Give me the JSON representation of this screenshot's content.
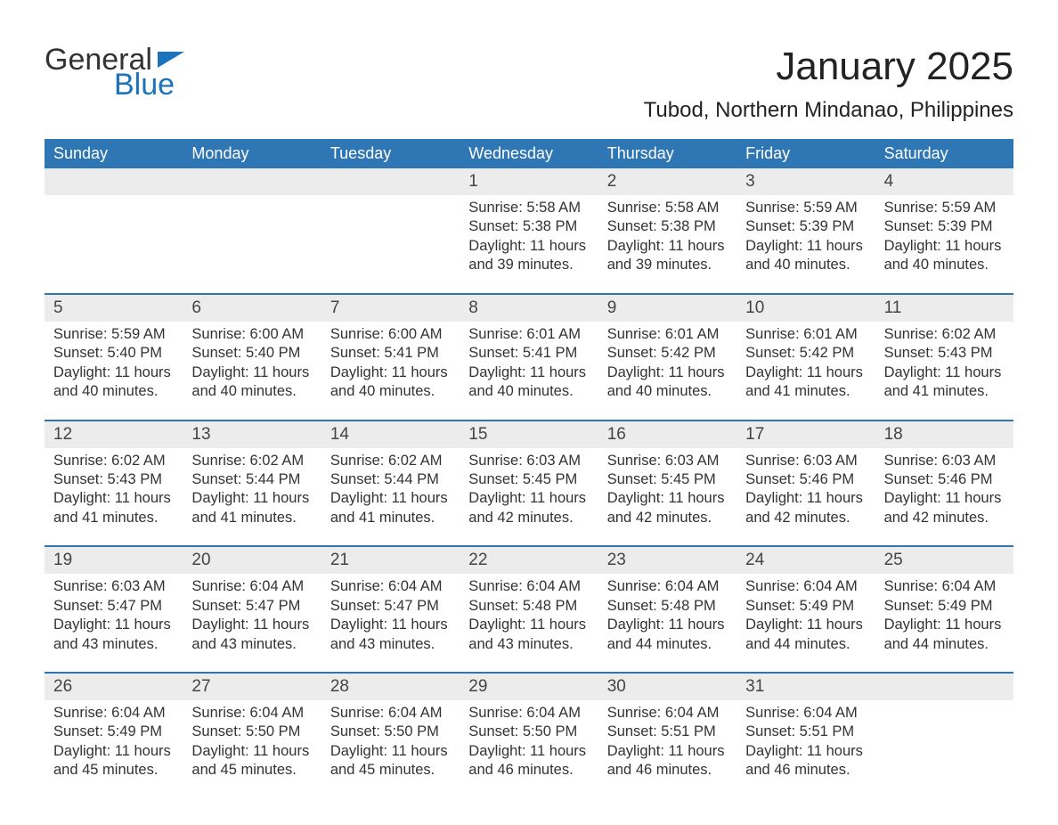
{
  "logo": {
    "text1": "General",
    "text2": "Blue"
  },
  "title": "January 2025",
  "subtitle": "Tubod, Northern Mindanao, Philippines",
  "colors": {
    "header_bg": "#2f76b5",
    "header_text": "#ffffff",
    "daynum_bg": "#ececec",
    "border": "#2f76b5",
    "text": "#333333",
    "logo_blue": "#1b74bb",
    "background": "#ffffff"
  },
  "typography": {
    "title_fontsize": 44,
    "subtitle_fontsize": 24,
    "dayheader_fontsize": 18,
    "daynum_fontsize": 19,
    "body_fontsize": 16.5,
    "font_family": "Arial"
  },
  "layout": {
    "columns": 7,
    "weeks": 5,
    "first_day_column_index": 3
  },
  "day_headers": [
    "Sunday",
    "Monday",
    "Tuesday",
    "Wednesday",
    "Thursday",
    "Friday",
    "Saturday"
  ],
  "days": [
    {
      "n": "1",
      "sunrise": "Sunrise: 5:58 AM",
      "sunset": "Sunset: 5:38 PM",
      "d1": "Daylight: 11 hours",
      "d2": "and 39 minutes."
    },
    {
      "n": "2",
      "sunrise": "Sunrise: 5:58 AM",
      "sunset": "Sunset: 5:38 PM",
      "d1": "Daylight: 11 hours",
      "d2": "and 39 minutes."
    },
    {
      "n": "3",
      "sunrise": "Sunrise: 5:59 AM",
      "sunset": "Sunset: 5:39 PM",
      "d1": "Daylight: 11 hours",
      "d2": "and 40 minutes."
    },
    {
      "n": "4",
      "sunrise": "Sunrise: 5:59 AM",
      "sunset": "Sunset: 5:39 PM",
      "d1": "Daylight: 11 hours",
      "d2": "and 40 minutes."
    },
    {
      "n": "5",
      "sunrise": "Sunrise: 5:59 AM",
      "sunset": "Sunset: 5:40 PM",
      "d1": "Daylight: 11 hours",
      "d2": "and 40 minutes."
    },
    {
      "n": "6",
      "sunrise": "Sunrise: 6:00 AM",
      "sunset": "Sunset: 5:40 PM",
      "d1": "Daylight: 11 hours",
      "d2": "and 40 minutes."
    },
    {
      "n": "7",
      "sunrise": "Sunrise: 6:00 AM",
      "sunset": "Sunset: 5:41 PM",
      "d1": "Daylight: 11 hours",
      "d2": "and 40 minutes."
    },
    {
      "n": "8",
      "sunrise": "Sunrise: 6:01 AM",
      "sunset": "Sunset: 5:41 PM",
      "d1": "Daylight: 11 hours",
      "d2": "and 40 minutes."
    },
    {
      "n": "9",
      "sunrise": "Sunrise: 6:01 AM",
      "sunset": "Sunset: 5:42 PM",
      "d1": "Daylight: 11 hours",
      "d2": "and 40 minutes."
    },
    {
      "n": "10",
      "sunrise": "Sunrise: 6:01 AM",
      "sunset": "Sunset: 5:42 PM",
      "d1": "Daylight: 11 hours",
      "d2": "and 41 minutes."
    },
    {
      "n": "11",
      "sunrise": "Sunrise: 6:02 AM",
      "sunset": "Sunset: 5:43 PM",
      "d1": "Daylight: 11 hours",
      "d2": "and 41 minutes."
    },
    {
      "n": "12",
      "sunrise": "Sunrise: 6:02 AM",
      "sunset": "Sunset: 5:43 PM",
      "d1": "Daylight: 11 hours",
      "d2": "and 41 minutes."
    },
    {
      "n": "13",
      "sunrise": "Sunrise: 6:02 AM",
      "sunset": "Sunset: 5:44 PM",
      "d1": "Daylight: 11 hours",
      "d2": "and 41 minutes."
    },
    {
      "n": "14",
      "sunrise": "Sunrise: 6:02 AM",
      "sunset": "Sunset: 5:44 PM",
      "d1": "Daylight: 11 hours",
      "d2": "and 41 minutes."
    },
    {
      "n": "15",
      "sunrise": "Sunrise: 6:03 AM",
      "sunset": "Sunset: 5:45 PM",
      "d1": "Daylight: 11 hours",
      "d2": "and 42 minutes."
    },
    {
      "n": "16",
      "sunrise": "Sunrise: 6:03 AM",
      "sunset": "Sunset: 5:45 PM",
      "d1": "Daylight: 11 hours",
      "d2": "and 42 minutes."
    },
    {
      "n": "17",
      "sunrise": "Sunrise: 6:03 AM",
      "sunset": "Sunset: 5:46 PM",
      "d1": "Daylight: 11 hours",
      "d2": "and 42 minutes."
    },
    {
      "n": "18",
      "sunrise": "Sunrise: 6:03 AM",
      "sunset": "Sunset: 5:46 PM",
      "d1": "Daylight: 11 hours",
      "d2": "and 42 minutes."
    },
    {
      "n": "19",
      "sunrise": "Sunrise: 6:03 AM",
      "sunset": "Sunset: 5:47 PM",
      "d1": "Daylight: 11 hours",
      "d2": "and 43 minutes."
    },
    {
      "n": "20",
      "sunrise": "Sunrise: 6:04 AM",
      "sunset": "Sunset: 5:47 PM",
      "d1": "Daylight: 11 hours",
      "d2": "and 43 minutes."
    },
    {
      "n": "21",
      "sunrise": "Sunrise: 6:04 AM",
      "sunset": "Sunset: 5:47 PM",
      "d1": "Daylight: 11 hours",
      "d2": "and 43 minutes."
    },
    {
      "n": "22",
      "sunrise": "Sunrise: 6:04 AM",
      "sunset": "Sunset: 5:48 PM",
      "d1": "Daylight: 11 hours",
      "d2": "and 43 minutes."
    },
    {
      "n": "23",
      "sunrise": "Sunrise: 6:04 AM",
      "sunset": "Sunset: 5:48 PM",
      "d1": "Daylight: 11 hours",
      "d2": "and 44 minutes."
    },
    {
      "n": "24",
      "sunrise": "Sunrise: 6:04 AM",
      "sunset": "Sunset: 5:49 PM",
      "d1": "Daylight: 11 hours",
      "d2": "and 44 minutes."
    },
    {
      "n": "25",
      "sunrise": "Sunrise: 6:04 AM",
      "sunset": "Sunset: 5:49 PM",
      "d1": "Daylight: 11 hours",
      "d2": "and 44 minutes."
    },
    {
      "n": "26",
      "sunrise": "Sunrise: 6:04 AM",
      "sunset": "Sunset: 5:49 PM",
      "d1": "Daylight: 11 hours",
      "d2": "and 45 minutes."
    },
    {
      "n": "27",
      "sunrise": "Sunrise: 6:04 AM",
      "sunset": "Sunset: 5:50 PM",
      "d1": "Daylight: 11 hours",
      "d2": "and 45 minutes."
    },
    {
      "n": "28",
      "sunrise": "Sunrise: 6:04 AM",
      "sunset": "Sunset: 5:50 PM",
      "d1": "Daylight: 11 hours",
      "d2": "and 45 minutes."
    },
    {
      "n": "29",
      "sunrise": "Sunrise: 6:04 AM",
      "sunset": "Sunset: 5:50 PM",
      "d1": "Daylight: 11 hours",
      "d2": "and 46 minutes."
    },
    {
      "n": "30",
      "sunrise": "Sunrise: 6:04 AM",
      "sunset": "Sunset: 5:51 PM",
      "d1": "Daylight: 11 hours",
      "d2": "and 46 minutes."
    },
    {
      "n": "31",
      "sunrise": "Sunrise: 6:04 AM",
      "sunset": "Sunset: 5:51 PM",
      "d1": "Daylight: 11 hours",
      "d2": "and 46 minutes."
    }
  ]
}
